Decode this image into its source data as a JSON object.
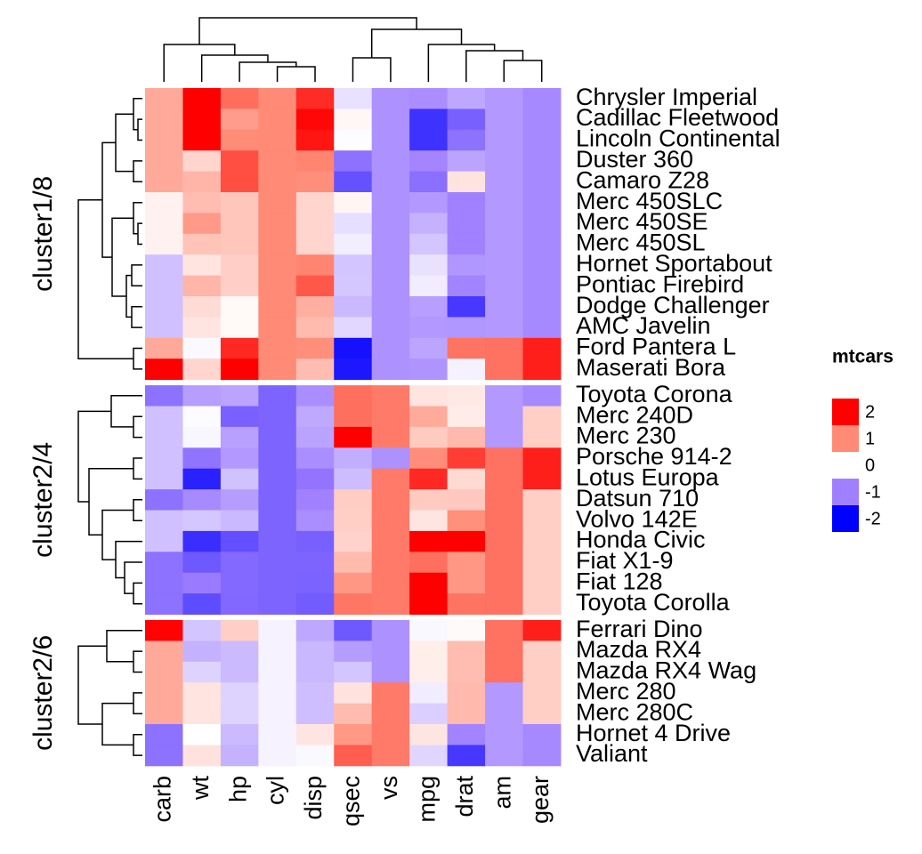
{
  "chart_data": {
    "type": "heatmap",
    "columns": [
      "carb",
      "wt",
      "hp",
      "cyl",
      "disp",
      "qsec",
      "vs",
      "mpg",
      "drat",
      "am",
      "gear"
    ],
    "row_groups": [
      {
        "name": "cluster1/8",
        "rows": [
          "Chrysler Imperial",
          "Cadillac Fleetwood",
          "Lincoln Continental",
          "Duster 360",
          "Camaro Z28",
          "Merc 450SLC",
          "Merc 450SE",
          "Merc 450SL",
          "Hornet Sportabout",
          "Pontiac Firebird",
          "Dodge Challenger",
          "AMC Javelin",
          "Ford Pantera L",
          "Maserati Bora"
        ],
        "values": [
          [
            0.74,
            2.18,
            1.21,
            1.01,
            1.69,
            -0.24,
            -0.87,
            -0.89,
            -0.69,
            -0.81,
            -0.93
          ],
          [
            0.74,
            2.08,
            0.85,
            1.01,
            1.95,
            0.07,
            -0.87,
            -1.61,
            -1.25,
            -0.81,
            -0.93
          ],
          [
            0.74,
            2.26,
            0.99,
            1.01,
            1.85,
            -0.02,
            -0.87,
            -1.61,
            -1.12,
            -0.81,
            -0.93
          ],
          [
            0.74,
            0.36,
            1.43,
            1.01,
            1.04,
            -1.12,
            -0.87,
            -0.96,
            -0.72,
            -0.81,
            -0.93
          ],
          [
            0.74,
            0.64,
            1.43,
            1.01,
            0.97,
            -1.37,
            -0.87,
            -1.13,
            0.24,
            -0.81,
            -0.93
          ],
          [
            0.12,
            0.58,
            0.49,
            1.01,
            0.36,
            0.08,
            -0.87,
            -0.81,
            -0.99,
            -0.81,
            -0.93
          ],
          [
            0.12,
            0.87,
            0.49,
            1.01,
            0.36,
            -0.25,
            -0.87,
            -0.61,
            -0.99,
            -0.81,
            -0.93
          ],
          [
            0.12,
            0.52,
            0.49,
            1.01,
            0.36,
            -0.14,
            -0.87,
            -0.46,
            -0.99,
            -0.81,
            -0.93
          ],
          [
            -0.5,
            0.23,
            0.41,
            1.01,
            1.04,
            -0.46,
            -0.87,
            -0.23,
            -0.83,
            -0.81,
            -0.93
          ],
          [
            -0.5,
            0.64,
            0.41,
            1.01,
            1.37,
            -0.45,
            -0.87,
            -0.15,
            -0.97,
            -0.81,
            -0.93
          ],
          [
            -0.5,
            0.31,
            0.05,
            1.01,
            0.7,
            -0.55,
            -0.87,
            -0.76,
            -1.56,
            -0.81,
            -0.93
          ],
          [
            -0.5,
            0.22,
            0.05,
            1.01,
            0.59,
            -0.31,
            -0.87,
            -0.81,
            -0.83,
            -0.81,
            -0.93
          ],
          [
            0.74,
            -0.05,
            1.71,
            1.01,
            0.97,
            -1.87,
            -0.87,
            -0.71,
            1.17,
            1.19,
            1.78
          ],
          [
            3.21,
            0.36,
            2.75,
            1.01,
            0.57,
            -1.82,
            -0.87,
            -0.84,
            -0.11,
            1.19,
            1.78
          ]
        ]
      },
      {
        "name": "cluster2/4",
        "rows": [
          "Toyota Corona",
          "Merc 240D",
          "Merc 230",
          "Porsche 914-2",
          "Lotus Europa",
          "Datsun 710",
          "Volvo 142E",
          "Honda Civic",
          "Fiat X1-9",
          "Fiat 128",
          "Toyota Corolla"
        ],
        "values": [
          [
            -1.12,
            -0.77,
            -0.72,
            -1.22,
            -0.89,
            1.2,
            1.12,
            0.23,
            0.19,
            -0.81,
            -0.93
          ],
          [
            -0.5,
            -0.03,
            -1.24,
            -1.22,
            -0.68,
            1.2,
            1.12,
            0.72,
            0.17,
            -0.81,
            0.42
          ],
          [
            -0.5,
            -0.07,
            -0.75,
            -1.22,
            -0.73,
            2.83,
            1.12,
            0.45,
            0.6,
            -0.81,
            0.42
          ],
          [
            -0.5,
            -1.1,
            -0.81,
            -1.22,
            -0.89,
            -0.64,
            -0.87,
            0.98,
            1.56,
            1.19,
            1.78
          ],
          [
            -0.5,
            -1.74,
            -0.49,
            -1.22,
            -1.09,
            -0.53,
            1.12,
            1.71,
            0.32,
            1.19,
            1.78
          ],
          [
            -1.12,
            -0.92,
            -0.78,
            -1.22,
            -0.99,
            0.43,
            1.12,
            0.45,
            0.47,
            1.19,
            0.42
          ],
          [
            -0.5,
            -0.45,
            -0.55,
            -1.22,
            -0.89,
            0.42,
            1.12,
            0.22,
            0.96,
            1.19,
            0.42
          ],
          [
            -0.5,
            -1.64,
            -1.38,
            -1.22,
            -1.25,
            0.38,
            1.12,
            2.04,
            2.49,
            1.19,
            0.42
          ],
          [
            -1.12,
            -1.31,
            -1.18,
            -1.22,
            -1.22,
            0.59,
            1.12,
            1.2,
            0.9,
            1.19,
            0.42
          ],
          [
            -1.12,
            -1.04,
            -1.18,
            -1.22,
            -1.23,
            0.9,
            1.12,
            2.04,
            0.9,
            1.19,
            0.42
          ],
          [
            -1.12,
            -1.41,
            -1.19,
            -1.22,
            -1.29,
            1.15,
            1.12,
            2.29,
            1.17,
            1.19,
            0.42
          ]
        ]
      },
      {
        "name": "cluster2/6",
        "rows": [
          "Ferrari Dino",
          "Mazda RX4",
          "Mazda RX4 Wag",
          "Merc 280",
          "Merc 280C",
          "Hornet 4 Drive",
          "Valiant"
        ],
        "values": [
          [
            1.98,
            -0.46,
            0.41,
            -0.1,
            -0.69,
            -1.31,
            -0.87,
            -0.06,
            0.04,
            1.19,
            1.78
          ],
          [
            0.74,
            -0.61,
            -0.54,
            -0.1,
            -0.57,
            -0.78,
            -0.87,
            0.15,
            0.57,
            1.19,
            0.42
          ],
          [
            0.74,
            -0.35,
            -0.54,
            -0.1,
            -0.57,
            -0.46,
            -0.87,
            0.15,
            0.57,
            1.19,
            0.42
          ],
          [
            0.74,
            0.23,
            -0.35,
            -0.1,
            -0.51,
            0.25,
            1.12,
            -0.15,
            0.6,
            -0.81,
            0.42
          ],
          [
            0.74,
            0.23,
            -0.35,
            -0.1,
            -0.51,
            0.59,
            1.12,
            -0.38,
            0.6,
            -0.81,
            0.42
          ],
          [
            -1.12,
            0.0,
            -0.54,
            -0.1,
            0.22,
            0.89,
            1.12,
            0.22,
            -0.97,
            -0.81,
            -0.93
          ],
          [
            -1.12,
            0.25,
            -0.61,
            -0.1,
            -0.05,
            1.33,
            1.12,
            -0.33,
            -1.56,
            -0.81,
            -0.93
          ]
        ]
      }
    ],
    "legend": {
      "title": "mtcars",
      "breaks": [
        2,
        1,
        0,
        -1,
        -2
      ],
      "colors": [
        "#ff0000",
        "#ff8b76",
        "#ffffff",
        "#a080ff",
        "#0000ff"
      ]
    }
  }
}
